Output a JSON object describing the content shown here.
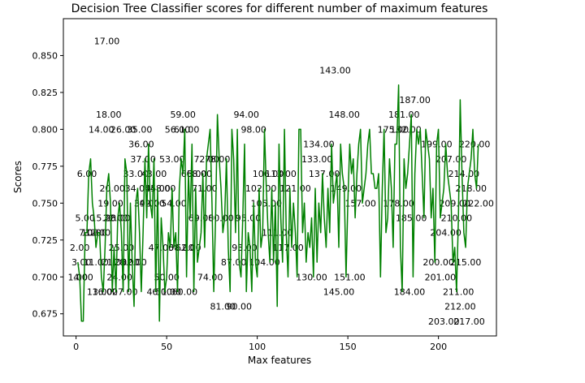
{
  "chart_data": {
    "type": "line",
    "title": "Decision Tree Classifier scores for different number of maximum features",
    "xlabel": "Max features",
    "ylabel": "Scores",
    "xlim": [
      -7,
      232
    ],
    "ylim": [
      0.66,
      0.875
    ],
    "xticks": [
      0,
      50,
      100,
      150,
      200
    ],
    "yticks": [
      0.675,
      0.7,
      0.725,
      0.75,
      0.775,
      0.8,
      0.825,
      0.85
    ],
    "xtick_labels": [
      "0",
      "50",
      "100",
      "150",
      "200"
    ],
    "ytick_labels": [
      "0.675",
      "0.700",
      "0.725",
      "0.750",
      "0.775",
      "0.800",
      "0.825",
      "0.850"
    ],
    "grid": false,
    "line_color": "#008000",
    "series": [
      {
        "x": [
          1,
          2,
          3,
          4,
          5,
          6,
          7,
          8,
          9,
          10,
          11,
          12,
          13,
          14,
          15,
          16,
          17,
          18,
          19,
          20,
          21,
          22,
          23,
          24,
          25,
          26,
          27,
          28,
          29,
          30,
          31,
          32,
          33,
          34,
          35,
          36,
          37,
          38,
          39,
          40,
          41,
          42,
          43,
          44,
          45,
          46,
          47,
          48,
          49,
          50,
          51,
          52,
          53,
          54,
          55,
          56,
          57,
          58,
          59,
          60,
          61,
          62,
          63,
          64,
          65,
          66,
          67,
          68,
          69,
          70,
          71,
          72,
          73,
          74,
          75,
          76,
          77,
          78,
          79,
          80,
          81,
          82,
          83,
          84,
          85,
          86,
          87,
          88,
          89,
          90,
          91,
          92,
          93,
          94,
          95,
          96,
          97,
          98,
          99,
          100,
          101,
          102,
          103,
          104,
          105,
          106,
          107,
          108,
          109,
          110,
          111,
          112,
          113,
          114,
          115,
          116,
          117,
          118,
          119,
          120,
          121,
          122,
          123,
          124,
          125,
          126,
          127,
          128,
          129,
          130,
          131,
          132,
          133,
          134,
          135,
          136,
          137,
          138,
          139,
          140,
          141,
          142,
          143,
          144,
          145,
          146,
          147,
          148,
          149,
          150,
          151,
          152,
          153,
          154,
          155,
          156,
          157,
          158,
          159,
          160,
          161,
          162,
          163,
          164,
          165,
          166,
          167,
          168,
          169,
          170,
          171,
          172,
          173,
          174,
          175,
          176,
          177,
          178,
          179,
          180,
          181,
          182,
          183,
          184,
          185,
          186,
          187,
          188,
          189,
          190,
          191,
          192,
          193,
          194,
          195,
          196,
          197,
          198,
          199,
          200,
          201,
          202,
          203,
          204,
          205,
          206,
          207,
          208,
          209,
          210,
          211,
          212,
          213,
          214,
          215,
          216,
          217,
          218,
          219,
          220,
          221,
          222
        ],
        "y": [
          0.71,
          0.7,
          0.67,
          0.67,
          0.73,
          0.73,
          0.77,
          0.78,
          0.75,
          0.74,
          0.72,
          0.73,
          0.73,
          0.7,
          0.69,
          0.72,
          0.76,
          0.77,
          0.75,
          0.69,
          0.72,
          0.69,
          0.74,
          0.75,
          0.73,
          0.69,
          0.78,
          0.77,
          0.69,
          0.75,
          0.71,
          0.68,
          0.75,
          0.76,
          0.73,
          0.69,
          0.73,
          0.78,
          0.74,
          0.79,
          0.75,
          0.74,
          0.78,
          0.69,
          0.76,
          0.67,
          0.74,
          0.72,
          0.69,
          0.7,
          0.73,
          0.72,
          0.76,
          0.72,
          0.73,
          0.69,
          0.76,
          0.78,
          0.77,
          0.8,
          0.7,
          0.77,
          0.74,
          0.79,
          0.69,
          0.76,
          0.71,
          0.72,
          0.73,
          0.77,
          0.72,
          0.78,
          0.79,
          0.8,
          0.75,
          0.69,
          0.74,
          0.81,
          0.78,
          0.76,
          0.73,
          0.74,
          0.78,
          0.72,
          0.69,
          0.8,
          0.78,
          0.73,
          0.8,
          0.71,
          0.7,
          0.74,
          0.79,
          0.69,
          0.73,
          0.72,
          0.69,
          0.75,
          0.71,
          0.7,
          0.76,
          0.72,
          0.73,
          0.8,
          0.76,
          0.73,
          0.71,
          0.76,
          0.71,
          0.75,
          0.68,
          0.79,
          0.74,
          0.71,
          0.8,
          0.73,
          0.7,
          0.76,
          0.72,
          0.75,
          0.73,
          0.7,
          0.8,
          0.8,
          0.73,
          0.75,
          0.71,
          0.73,
          0.72,
          0.74,
          0.7,
          0.76,
          0.71,
          0.75,
          0.73,
          0.77,
          0.74,
          0.72,
          0.76,
          0.73,
          0.79,
          0.75,
          0.76,
          0.77,
          0.72,
          0.79,
          0.77,
          0.76,
          0.7,
          0.75,
          0.79,
          0.77,
          0.78,
          0.74,
          0.77,
          0.79,
          0.8,
          0.75,
          0.76,
          0.77,
          0.79,
          0.8,
          0.77,
          0.77,
          0.76,
          0.76,
          0.77,
          0.7,
          0.76,
          0.8,
          0.73,
          0.74,
          0.78,
          0.76,
          0.72,
          0.79,
          0.79,
          0.83,
          0.72,
          0.69,
          0.78,
          0.76,
          0.77,
          0.79,
          0.81,
          0.7,
          0.77,
          0.8,
          0.79,
          0.8,
          0.77,
          0.74,
          0.8,
          0.79,
          0.78,
          0.74,
          0.76,
          0.71,
          0.79,
          0.8,
          0.74,
          0.75,
          0.76,
          0.79,
          0.77,
          0.76,
          0.75,
          0.71,
          0.72,
          0.69,
          0.74,
          0.82,
          0.77,
          0.73,
          0.72,
          0.76,
          0.77,
          0.78,
          0.8,
          0.77,
          0.76,
          0.79
        ]
      }
    ],
    "point_labels": [
      {
        "text": "17.00",
        "x": 17,
        "y": 0.86
      },
      {
        "text": "18.00",
        "x": 18,
        "y": 0.81
      },
      {
        "text": "14.00",
        "x": 14,
        "y": 0.8
      },
      {
        "text": "26.00",
        "x": 26,
        "y": 0.8
      },
      {
        "text": "35.00",
        "x": 35,
        "y": 0.8
      },
      {
        "text": "36.00",
        "x": 36,
        "y": 0.79
      },
      {
        "text": "37.00",
        "x": 37,
        "y": 0.78
      },
      {
        "text": "6.00",
        "x": 6,
        "y": 0.77
      },
      {
        "text": "33.00",
        "x": 33,
        "y": 0.77
      },
      {
        "text": "43.00",
        "x": 43,
        "y": 0.77
      },
      {
        "text": "20.00",
        "x": 20,
        "y": 0.76
      },
      {
        "text": "34.00",
        "x": 34,
        "y": 0.76
      },
      {
        "text": "45.00",
        "x": 45,
        "y": 0.76
      },
      {
        "text": "48.00",
        "x": 48,
        "y": 0.76
      },
      {
        "text": "19.00",
        "x": 19,
        "y": 0.75
      },
      {
        "text": "39.00",
        "x": 39,
        "y": 0.75
      },
      {
        "text": "42.00",
        "x": 42,
        "y": 0.75
      },
      {
        "text": "54.00",
        "x": 54,
        "y": 0.75
      },
      {
        "text": "5.00",
        "x": 5,
        "y": 0.74
      },
      {
        "text": "15.00",
        "x": 15,
        "y": 0.74
      },
      {
        "text": "22.00",
        "x": 22,
        "y": 0.74
      },
      {
        "text": "23.00",
        "x": 23,
        "y": 0.74
      },
      {
        "text": "7.00",
        "x": 7,
        "y": 0.73
      },
      {
        "text": "10.00",
        "x": 10,
        "y": 0.73
      },
      {
        "text": "12.00",
        "x": 12,
        "y": 0.73
      },
      {
        "text": "2.00",
        "x": 2,
        "y": 0.72
      },
      {
        "text": "25.00",
        "x": 25,
        "y": 0.72
      },
      {
        "text": "3.00",
        "x": 3,
        "y": 0.71
      },
      {
        "text": "11.00",
        "x": 11,
        "y": 0.71
      },
      {
        "text": "21.00",
        "x": 21,
        "y": 0.71
      },
      {
        "text": "28.00",
        "x": 28,
        "y": 0.71
      },
      {
        "text": "32.00",
        "x": 32,
        "y": 0.71
      },
      {
        "text": "1.00",
        "x": 1,
        "y": 0.7
      },
      {
        "text": "4.00",
        "x": 4,
        "y": 0.7
      },
      {
        "text": "24.00",
        "x": 24,
        "y": 0.7
      },
      {
        "text": "13.00",
        "x": 13,
        "y": 0.69
      },
      {
        "text": "16.00",
        "x": 16,
        "y": 0.69
      },
      {
        "text": "27.00",
        "x": 27,
        "y": 0.69
      },
      {
        "text": "47.00",
        "x": 47,
        "y": 0.72
      },
      {
        "text": "50.00",
        "x": 50,
        "y": 0.7
      },
      {
        "text": "46.00",
        "x": 46,
        "y": 0.69
      },
      {
        "text": "51.00",
        "x": 51,
        "y": 0.69
      },
      {
        "text": "60.00",
        "x": 60,
        "y": 0.69
      },
      {
        "text": "59.00",
        "x": 59,
        "y": 0.81
      },
      {
        "text": "56.00",
        "x": 56,
        "y": 0.8
      },
      {
        "text": "61.00",
        "x": 61,
        "y": 0.8
      },
      {
        "text": "53.00",
        "x": 53,
        "y": 0.78
      },
      {
        "text": "72.00",
        "x": 72,
        "y": 0.78
      },
      {
        "text": "78.00",
        "x": 78,
        "y": 0.78
      },
      {
        "text": "65.00",
        "x": 65,
        "y": 0.77
      },
      {
        "text": "68.00",
        "x": 68,
        "y": 0.77
      },
      {
        "text": "71.00",
        "x": 71,
        "y": 0.76
      },
      {
        "text": "69.00",
        "x": 69,
        "y": 0.74
      },
      {
        "text": "80.00",
        "x": 80,
        "y": 0.74
      },
      {
        "text": "58.00",
        "x": 58,
        "y": 0.72
      },
      {
        "text": "62.00",
        "x": 62,
        "y": 0.72
      },
      {
        "text": "74.00",
        "x": 74,
        "y": 0.7
      },
      {
        "text": "94.00",
        "x": 94,
        "y": 0.81
      },
      {
        "text": "98.00",
        "x": 98,
        "y": 0.8
      },
      {
        "text": "81.00",
        "x": 81,
        "y": 0.68
      },
      {
        "text": "90.00",
        "x": 90,
        "y": 0.68
      },
      {
        "text": "95.00",
        "x": 95,
        "y": 0.74
      },
      {
        "text": "87.00",
        "x": 87,
        "y": 0.71
      },
      {
        "text": "93.00",
        "x": 93,
        "y": 0.72
      },
      {
        "text": "106.00",
        "x": 106,
        "y": 0.77
      },
      {
        "text": "113.00",
        "x": 113,
        "y": 0.77
      },
      {
        "text": "102.00",
        "x": 102,
        "y": 0.76
      },
      {
        "text": "105.00",
        "x": 105,
        "y": 0.75
      },
      {
        "text": "121.00",
        "x": 121,
        "y": 0.76
      },
      {
        "text": "111.00",
        "x": 111,
        "y": 0.73
      },
      {
        "text": "117.00",
        "x": 117,
        "y": 0.72
      },
      {
        "text": "104.00",
        "x": 104,
        "y": 0.71
      },
      {
        "text": "130.00",
        "x": 130,
        "y": 0.7
      },
      {
        "text": "143.00",
        "x": 143,
        "y": 0.84
      },
      {
        "text": "148.00",
        "x": 148,
        "y": 0.81
      },
      {
        "text": "134.00",
        "x": 134,
        "y": 0.79
      },
      {
        "text": "133.00",
        "x": 133,
        "y": 0.78
      },
      {
        "text": "137.00",
        "x": 137,
        "y": 0.77
      },
      {
        "text": "149.00",
        "x": 149,
        "y": 0.76
      },
      {
        "text": "151.00",
        "x": 151,
        "y": 0.7
      },
      {
        "text": "145.00",
        "x": 145,
        "y": 0.69
      },
      {
        "text": "157.00",
        "x": 157,
        "y": 0.75
      },
      {
        "text": "178.00",
        "x": 178,
        "y": 0.75
      },
      {
        "text": "187.00",
        "x": 187,
        "y": 0.82
      },
      {
        "text": "181.00",
        "x": 181,
        "y": 0.81
      },
      {
        "text": "175.00",
        "x": 175,
        "y": 0.8
      },
      {
        "text": "182.00",
        "x": 182,
        "y": 0.8
      },
      {
        "text": "199.00",
        "x": 199,
        "y": 0.79
      },
      {
        "text": "220.00",
        "x": 220,
        "y": 0.79
      },
      {
        "text": "207.00",
        "x": 207,
        "y": 0.78
      },
      {
        "text": "214.00",
        "x": 214,
        "y": 0.77
      },
      {
        "text": "218.00",
        "x": 218,
        "y": 0.76
      },
      {
        "text": "209.00",
        "x": 209,
        "y": 0.75
      },
      {
        "text": "222.00",
        "x": 222,
        "y": 0.75
      },
      {
        "text": "185.00",
        "x": 185,
        "y": 0.74
      },
      {
        "text": "210.00",
        "x": 210,
        "y": 0.74
      },
      {
        "text": "204.00",
        "x": 204,
        "y": 0.73
      },
      {
        "text": "200.00",
        "x": 200,
        "y": 0.71
      },
      {
        "text": "215.00",
        "x": 215,
        "y": 0.71
      },
      {
        "text": "201.00",
        "x": 201,
        "y": 0.7
      },
      {
        "text": "184.00",
        "x": 184,
        "y": 0.69
      },
      {
        "text": "211.00",
        "x": 211,
        "y": 0.69
      },
      {
        "text": "212.00",
        "x": 212,
        "y": 0.68
      },
      {
        "text": "203.00",
        "x": 203,
        "y": 0.67
      },
      {
        "text": "217.00",
        "x": 217,
        "y": 0.67
      }
    ]
  }
}
